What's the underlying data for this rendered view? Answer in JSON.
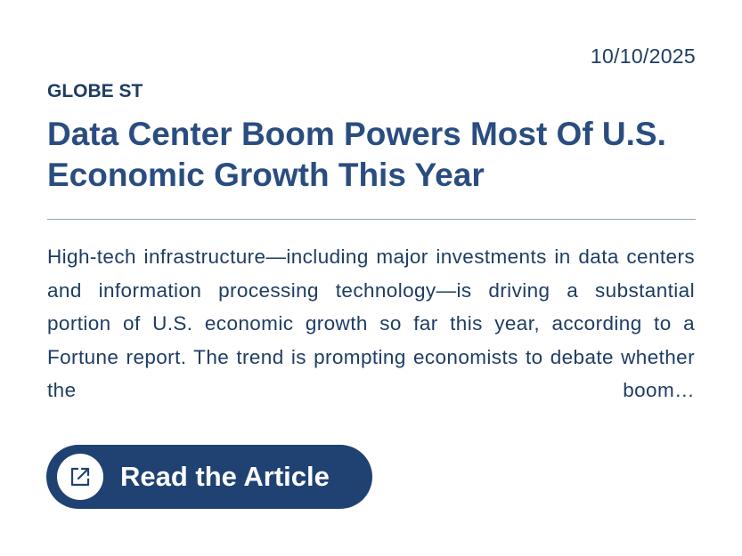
{
  "card": {
    "date": "10/10/2025",
    "source": "GLOBE ST",
    "title": "Data Center Boom Powers Most Of U.S. Economic Growth This Year",
    "summary": "High-tech infrastructure—including major investments in data centers and information processing technology—is driving a substantial portion of U.S. economic growth so far this year, according to a Fortune report. The trend is prompting economists to debate whether the boom…",
    "button": "Read the Article"
  }
}
